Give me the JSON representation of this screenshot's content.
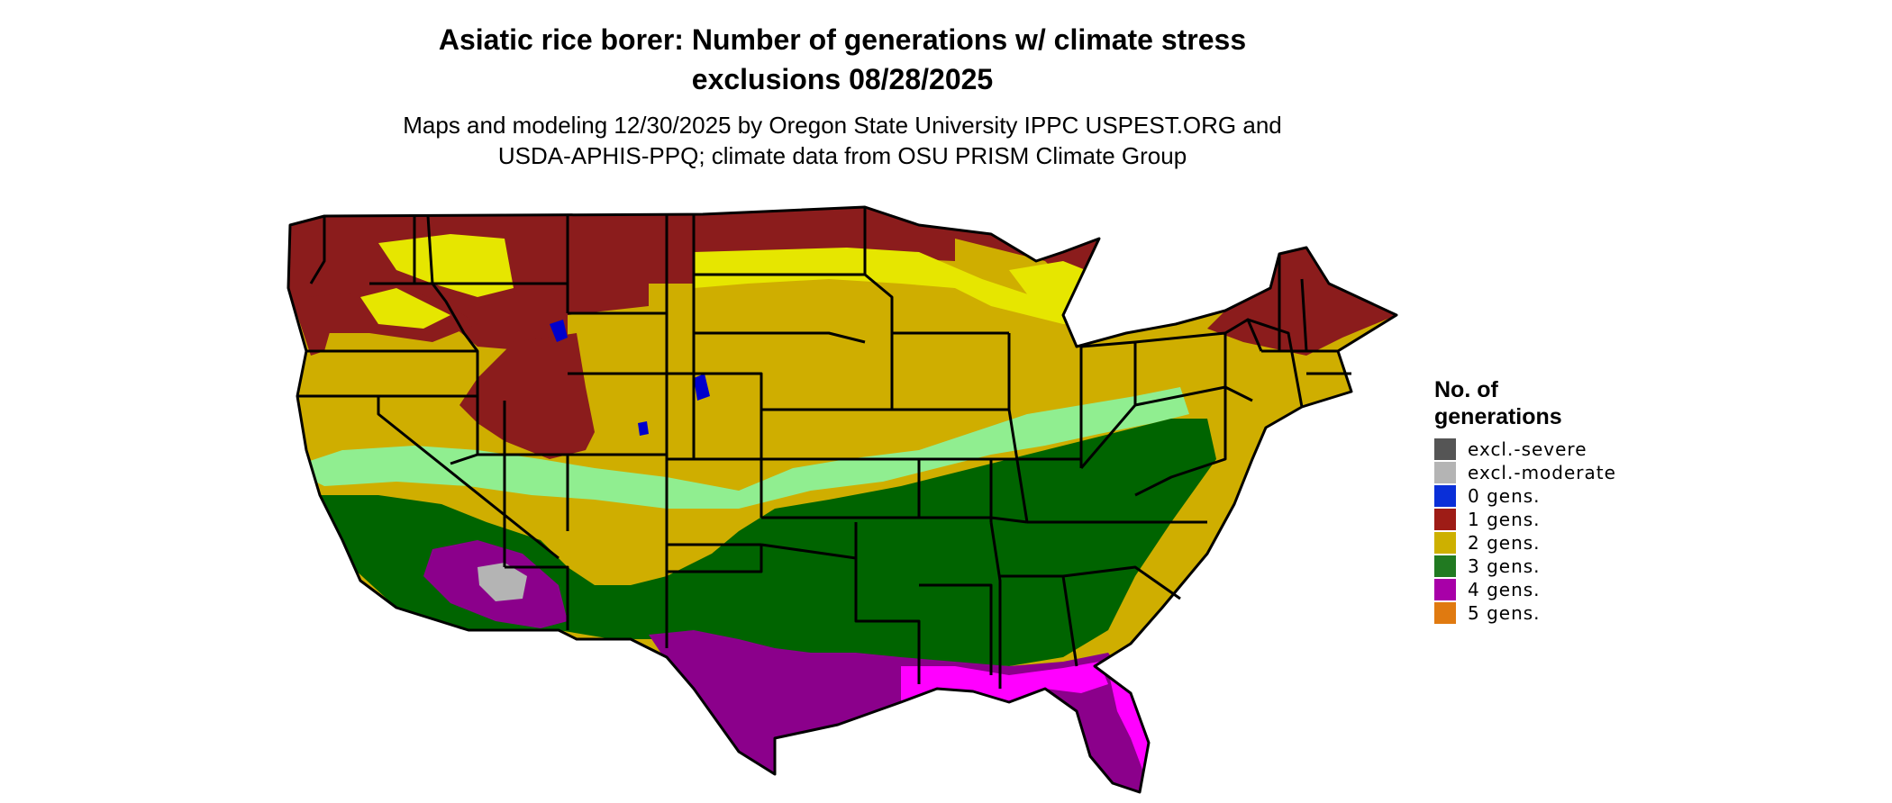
{
  "title": {
    "line1": "Asiatic rice borer: Number of generations w/ climate stress",
    "line2": "exclusions 08/28/2025"
  },
  "subtitle": {
    "line1": "Maps and modeling 12/30/2025 by Oregon State University IPPC USPEST.ORG and",
    "line2": "USDA-APHIS-PPQ; climate data from OSU PRISM Climate Group"
  },
  "legend": {
    "title_line1": "No. of",
    "title_line2": "generations",
    "items": [
      {
        "label": "excl.-severe",
        "color": "#555555"
      },
      {
        "label": "excl.-moderate",
        "color": "#b4b4b4"
      },
      {
        "label": "0 gens.",
        "color": "#0a2fd8"
      },
      {
        "label": "1 gens.",
        "color": "#9e1c16"
      },
      {
        "label": "2 gens.",
        "color": "#cdb000"
      },
      {
        "label": "3 gens.",
        "color": "#217a21"
      },
      {
        "label": "4 gens.",
        "color": "#a800a8"
      },
      {
        "label": "5 gens.",
        "color": "#e07a10"
      }
    ]
  },
  "map_colors": {
    "one_gen_dark": "#8b1c1c",
    "two_gens_gold": "#cfae00",
    "two_gens_yellow": "#e6e600",
    "three_gens_dark_green": "#006400",
    "three_gens_light_green": "#90ee90",
    "four_gens_purple": "#8b008b",
    "four_gens_magenta": "#ff00ff",
    "zero_gens_blue": "#0000cd",
    "five_gens_orange": "#e07a10",
    "excl_moderate": "#b4b4b4",
    "border": "#000000"
  }
}
